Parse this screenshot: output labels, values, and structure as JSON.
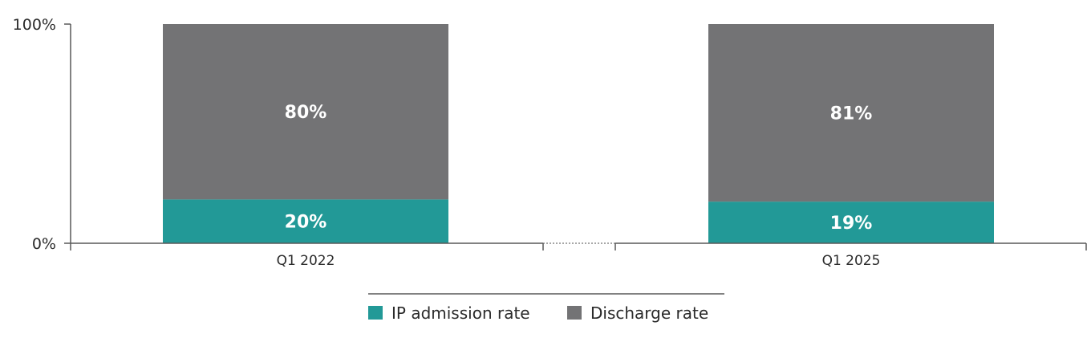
{
  "chart_data": {
    "type": "bar",
    "stacked": true,
    "categories": [
      "Q1 2022",
      "Q1 2025"
    ],
    "series": [
      {
        "name": "IP admission rate",
        "values": [
          20,
          19
        ],
        "labels": [
          "20%",
          "19%"
        ],
        "color": "#229997"
      },
      {
        "name": "Discharge rate",
        "values": [
          80,
          81
        ],
        "labels": [
          "80%",
          "81%"
        ],
        "color": "#737375"
      }
    ],
    "ylim": [
      0,
      100
    ],
    "yticks": [
      {
        "value": 0,
        "label": "0%"
      },
      {
        "value": 100,
        "label": "100%"
      }
    ],
    "axis_break": true,
    "grid": false,
    "legend": "bottom-center"
  }
}
